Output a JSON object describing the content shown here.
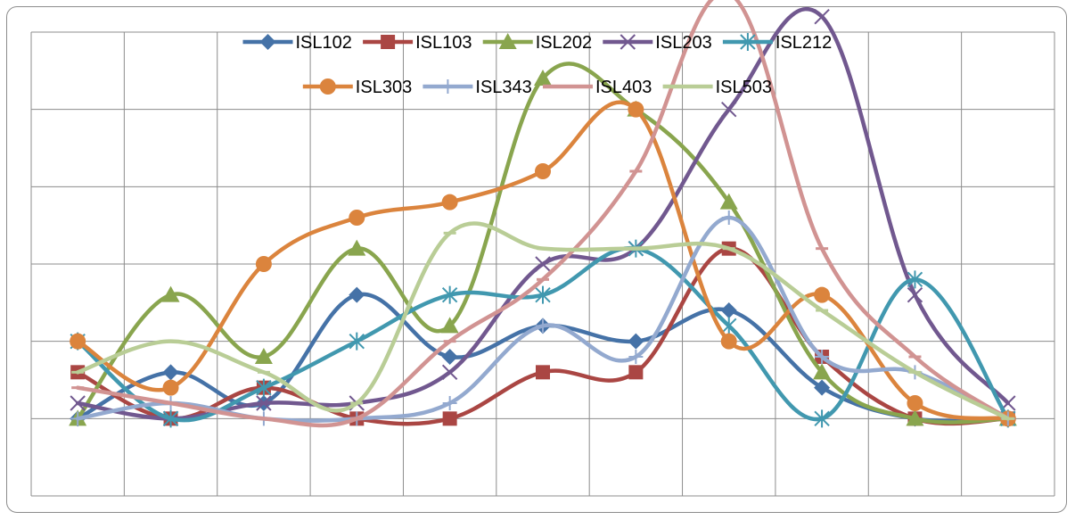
{
  "chart_data": {
    "type": "line",
    "smooth": true,
    "title": "",
    "xlabel": "",
    "ylabel": "",
    "x": [
      1,
      2,
      3,
      4,
      5,
      6,
      7,
      8,
      9,
      10,
      11
    ],
    "ylim": [
      -1,
      5
    ],
    "grid": true,
    "legend_placement": "top",
    "series": [
      {
        "name": "ISL102",
        "color": "#4572a7",
        "marker": "diamond",
        "values": [
          0.0,
          0.6,
          0.2,
          1.6,
          0.8,
          1.2,
          1.0,
          1.4,
          0.4,
          0.0,
          0.0
        ]
      },
      {
        "name": "ISL103",
        "color": "#aa4643",
        "marker": "square",
        "values": [
          0.6,
          0.0,
          0.4,
          0.0,
          0.0,
          0.6,
          0.6,
          2.2,
          0.8,
          0.0,
          0.0
        ]
      },
      {
        "name": "ISL202",
        "color": "#89a54e",
        "marker": "triangle",
        "values": [
          0.0,
          1.6,
          0.8,
          2.2,
          1.2,
          4.4,
          4.0,
          2.8,
          0.6,
          0.0,
          0.0
        ]
      },
      {
        "name": "ISL203",
        "color": "#71588f",
        "marker": "x",
        "values": [
          0.2,
          0.0,
          0.2,
          0.2,
          0.6,
          2.0,
          2.2,
          4.0,
          5.2,
          1.6,
          0.2
        ]
      },
      {
        "name": "ISL212",
        "color": "#4198af",
        "marker": "star",
        "values": [
          1.0,
          0.0,
          0.4,
          1.0,
          1.6,
          1.6,
          2.2,
          1.2,
          0.0,
          1.8,
          0.0
        ]
      },
      {
        "name": "ISL303",
        "color": "#db843d",
        "marker": "circle",
        "values": [
          1.0,
          0.4,
          2.0,
          2.6,
          2.8,
          3.2,
          4.0,
          1.0,
          1.6,
          0.2,
          0.0
        ]
      },
      {
        "name": "ISL343",
        "color": "#93a9cf",
        "marker": "plus",
        "values": [
          0.0,
          0.2,
          0.0,
          0.0,
          0.2,
          1.2,
          0.8,
          2.6,
          0.8,
          0.6,
          0.0
        ]
      },
      {
        "name": "ISL403",
        "color": "#d19392",
        "marker": "dash",
        "values": [
          0.4,
          0.2,
          0.0,
          0.0,
          1.0,
          1.8,
          3.2,
          5.5,
          2.2,
          0.8,
          0.0
        ]
      },
      {
        "name": "ISL503",
        "color": "#b9cd96",
        "marker": "dash",
        "values": [
          0.6,
          1.0,
          0.6,
          0.2,
          2.4,
          2.2,
          2.2,
          2.2,
          1.4,
          0.6,
          0.0
        ]
      }
    ]
  }
}
